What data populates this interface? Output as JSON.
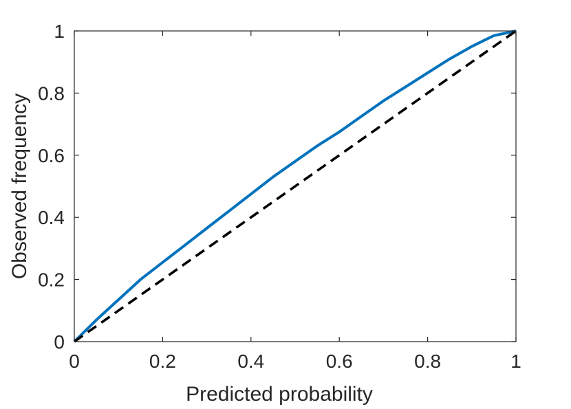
{
  "chart_data": {
    "type": "line",
    "title": "",
    "xlabel": "Predicted probability",
    "ylabel": "Observed frequency",
    "xlim": [
      0,
      1
    ],
    "ylim": [
      0,
      1
    ],
    "xticks": [
      0,
      0.2,
      0.4,
      0.6,
      0.8,
      1
    ],
    "yticks": [
      0,
      0.2,
      0.4,
      0.6,
      0.8,
      1
    ],
    "xtick_labels": [
      "0",
      "0.2",
      "0.4",
      "0.6",
      "0.8",
      "1"
    ],
    "ytick_labels": [
      "0",
      "0.2",
      "0.4",
      "0.6",
      "0.8",
      "1"
    ],
    "grid": false,
    "series": [
      {
        "style": "solid",
        "color": "#0072BD",
        "x": [
          0,
          0.05,
          0.1,
          0.15,
          0.2,
          0.25,
          0.3,
          0.35,
          0.4,
          0.45,
          0.5,
          0.55,
          0.6,
          0.65,
          0.7,
          0.75,
          0.8,
          0.85,
          0.9,
          0.95,
          1
        ],
        "y": [
          0,
          0.07,
          0.135,
          0.2,
          0.255,
          0.31,
          0.365,
          0.42,
          0.475,
          0.53,
          0.58,
          0.63,
          0.675,
          0.725,
          0.775,
          0.82,
          0.865,
          0.91,
          0.95,
          0.985,
          1
        ]
      },
      {
        "style": "dashed",
        "color": "#000000",
        "x": [
          0,
          1
        ],
        "y": [
          0,
          1
        ]
      }
    ]
  }
}
